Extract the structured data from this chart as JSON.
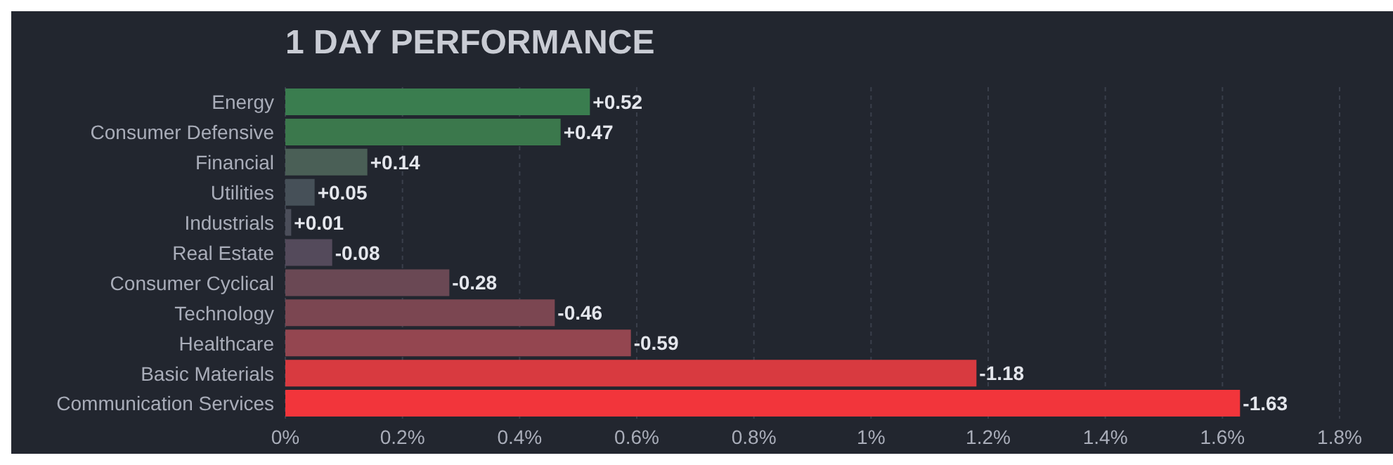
{
  "chart_data": {
    "type": "bar",
    "orientation": "horizontal",
    "title": "1 DAY PERFORMANCE",
    "categories": [
      "Energy",
      "Consumer Defensive",
      "Financial",
      "Utilities",
      "Industrials",
      "Real Estate",
      "Consumer Cyclical",
      "Technology",
      "Healthcare",
      "Basic Materials",
      "Communication Services"
    ],
    "values": [
      0.52,
      0.47,
      0.14,
      0.05,
      0.01,
      -0.08,
      -0.28,
      -0.46,
      -0.59,
      -1.18,
      -1.63
    ],
    "base": [
      0,
      0,
      0,
      0,
      0,
      0.08,
      0.28,
      0.46,
      0.59,
      1.18,
      1.63
    ],
    "value_labels": [
      "+0.52",
      "+0.47",
      "+0.14",
      "+0.05",
      "+0.01",
      "-0.08",
      "-0.28",
      "-0.46",
      "-0.59",
      "-1.18",
      "-1.63"
    ],
    "colors": [
      "#3a7d4f",
      "#3b784c",
      "#4a5f56",
      "#465058",
      "#4b4e5a",
      "#544a5b",
      "#6a4854",
      "#7b4651",
      "#944650",
      "#d83a40",
      "#f2353b"
    ],
    "xlim": [
      0,
      1.8
    ],
    "xticks": [
      {
        "value": 0,
        "label": "0%"
      },
      {
        "value": 0.2,
        "label": "0.2%"
      },
      {
        "value": 0.4,
        "label": "0.4%"
      },
      {
        "value": 0.6,
        "label": "0.6%"
      },
      {
        "value": 0.8,
        "label": "0.8%"
      },
      {
        "value": 1,
        "label": "1%"
      },
      {
        "value": 1.2,
        "label": "1.2%"
      },
      {
        "value": 1.4,
        "label": "1.4%"
      },
      {
        "value": 1.6,
        "label": "1.6%"
      },
      {
        "value": 1.8,
        "label": "1.8%"
      }
    ],
    "grid": "x",
    "legend": false
  }
}
